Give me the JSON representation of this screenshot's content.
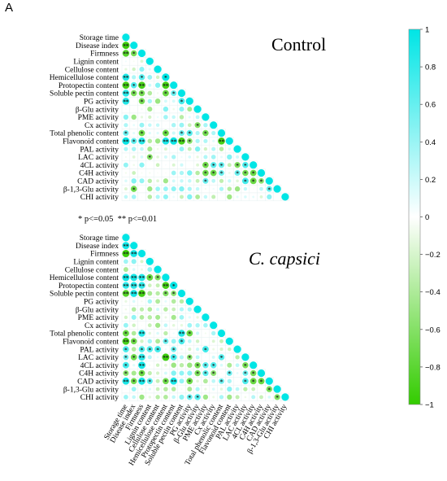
{
  "figure": {
    "panel_letter": "A",
    "significance_note": "* p<=0.05  ** p<=0.01",
    "star_one": "*",
    "star_two": "**"
  },
  "chart_data": [
    {
      "type": "heatmap",
      "title": "Control",
      "title_italic": false,
      "shape": "lower-triangle correlation, circle size and color by coefficient",
      "variables": [
        "Storage time",
        "Disease index",
        "Firmness",
        "Lignin content",
        "Cellulose content",
        "Hemicellulose content",
        "Protopectin content",
        "Soluble pectin content",
        "PG activity",
        "β-Glu activity",
        "PME activity",
        "Cx activity",
        "Total phenolic content",
        "Flavonoid content",
        "PAL activity",
        "LAC activity",
        "4CL activity",
        "C4H activity",
        "CAD activity",
        "β-1,3-Glu activity",
        "CHI activity"
      ],
      "significant_cells": [
        [
          1,
          0,
          "**"
        ],
        [
          2,
          0,
          "**"
        ],
        [
          2,
          1,
          "*"
        ],
        [
          5,
          0,
          "**"
        ],
        [
          5,
          2,
          "*"
        ],
        [
          5,
          5,
          "*"
        ],
        [
          6,
          0,
          "**"
        ],
        [
          6,
          1,
          "*"
        ],
        [
          6,
          2,
          "**"
        ],
        [
          6,
          5,
          "**"
        ],
        [
          7,
          0,
          "**"
        ],
        [
          7,
          1,
          "*"
        ],
        [
          7,
          2,
          "*"
        ],
        [
          7,
          5,
          "*"
        ],
        [
          7,
          6,
          "*"
        ],
        [
          8,
          0,
          "**"
        ],
        [
          8,
          2,
          "*"
        ],
        [
          8,
          7,
          "*"
        ],
        [
          11,
          9,
          "*"
        ],
        [
          12,
          0,
          "*"
        ],
        [
          12,
          2,
          "*"
        ],
        [
          12,
          5,
          "*"
        ],
        [
          12,
          7,
          "*"
        ],
        [
          12,
          8,
          "*"
        ],
        [
          12,
          10,
          "*"
        ],
        [
          13,
          0,
          "**"
        ],
        [
          13,
          1,
          "*"
        ],
        [
          13,
          2,
          "**"
        ],
        [
          13,
          5,
          "**"
        ],
        [
          13,
          6,
          "**"
        ],
        [
          13,
          7,
          "**"
        ],
        [
          13,
          8,
          "*"
        ],
        [
          13,
          12,
          "**"
        ],
        [
          15,
          3,
          "*"
        ],
        [
          16,
          10,
          "*"
        ],
        [
          16,
          11,
          "*"
        ],
        [
          16,
          12,
          "*"
        ],
        [
          16,
          14,
          "*"
        ],
        [
          16,
          15,
          "*"
        ],
        [
          17,
          10,
          "*"
        ],
        [
          17,
          11,
          "*"
        ],
        [
          17,
          12,
          "*"
        ],
        [
          17,
          14,
          "*"
        ],
        [
          17,
          15,
          "*"
        ],
        [
          17,
          16,
          "*"
        ],
        [
          18,
          10,
          "*"
        ],
        [
          18,
          15,
          "*"
        ],
        [
          18,
          16,
          "*"
        ],
        [
          18,
          17,
          "*"
        ],
        [
          19,
          1,
          "*"
        ],
        [
          19,
          18,
          "*"
        ]
      ],
      "color_scale": {
        "min": -1,
        "max": 1,
        "negative_color": "#33cc00",
        "zero_color": "#ffffff",
        "positive_color": "#00e5e5"
      }
    },
    {
      "type": "heatmap",
      "title": "C. capsici",
      "title_italic": true,
      "shape": "lower-triangle correlation, circle size and color by coefficient",
      "variables": [
        "Storage time",
        "Disease index",
        "Firmness",
        "Lignin content",
        "Cellulose content",
        "Hemicellulose content",
        "Protopectin content",
        "Soluble pectin content",
        "PG activity",
        "β-Glu activity",
        "PME activity",
        "Cx activity",
        "Total phenolic content",
        "Flavonoid content",
        "PAL activity",
        "LAC activity",
        "4CL activity",
        "C4H activity",
        "CAD activity",
        "β-1,3-Glu activity",
        "CHI activity"
      ],
      "significant_cells": [
        [
          1,
          0,
          "**"
        ],
        [
          2,
          0,
          "**"
        ],
        [
          2,
          1,
          "**"
        ],
        [
          5,
          0,
          "**"
        ],
        [
          5,
          1,
          "**"
        ],
        [
          5,
          2,
          "**"
        ],
        [
          5,
          3,
          "*"
        ],
        [
          5,
          4,
          "*"
        ],
        [
          6,
          0,
          "**"
        ],
        [
          6,
          1,
          "**"
        ],
        [
          6,
          2,
          "**"
        ],
        [
          6,
          5,
          "**"
        ],
        [
          6,
          6,
          "*"
        ],
        [
          7,
          0,
          "**"
        ],
        [
          7,
          1,
          "**"
        ],
        [
          7,
          2,
          "**"
        ],
        [
          7,
          5,
          "*"
        ],
        [
          7,
          6,
          "*"
        ],
        [
          12,
          0,
          "*"
        ],
        [
          12,
          2,
          "**"
        ],
        [
          12,
          7,
          "**"
        ],
        [
          12,
          8,
          "*"
        ],
        [
          13,
          0,
          "**"
        ],
        [
          13,
          1,
          "*"
        ],
        [
          13,
          5,
          "*"
        ],
        [
          13,
          7,
          "*"
        ],
        [
          14,
          0,
          "*"
        ],
        [
          14,
          2,
          "*"
        ],
        [
          14,
          3,
          "*"
        ],
        [
          14,
          4,
          "*"
        ],
        [
          14,
          6,
          "*"
        ],
        [
          14,
          10,
          "*"
        ],
        [
          15,
          0,
          "*"
        ],
        [
          15,
          1,
          "*"
        ],
        [
          15,
          2,
          "**"
        ],
        [
          15,
          5,
          "**"
        ],
        [
          15,
          6,
          "*"
        ],
        [
          15,
          8,
          "*"
        ],
        [
          15,
          12,
          "*"
        ],
        [
          16,
          0,
          "*"
        ],
        [
          16,
          2,
          "**"
        ],
        [
          16,
          9,
          "*"
        ],
        [
          16,
          10,
          "*"
        ],
        [
          16,
          11,
          "*"
        ],
        [
          16,
          15,
          "*"
        ],
        [
          17,
          0,
          "*"
        ],
        [
          17,
          2,
          "*"
        ],
        [
          17,
          9,
          "*"
        ],
        [
          17,
          10,
          "*"
        ],
        [
          17,
          11,
          "*"
        ],
        [
          17,
          13,
          "*"
        ],
        [
          17,
          15,
          "*"
        ],
        [
          17,
          16,
          "*"
        ],
        [
          18,
          0,
          "**"
        ],
        [
          18,
          1,
          "*"
        ],
        [
          18,
          2,
          "**"
        ],
        [
          18,
          3,
          "*"
        ],
        [
          18,
          5,
          "*"
        ],
        [
          18,
          6,
          "**"
        ],
        [
          18,
          8,
          "*"
        ],
        [
          18,
          12,
          "*"
        ],
        [
          18,
          15,
          "*"
        ],
        [
          18,
          16,
          "*"
        ],
        [
          18,
          17,
          "*"
        ],
        [
          19,
          18,
          "*"
        ],
        [
          20,
          8,
          "*"
        ],
        [
          20,
          9,
          "*"
        ],
        [
          20,
          19,
          "*"
        ]
      ],
      "color_scale": {
        "min": -1,
        "max": 1,
        "negative_color": "#33cc00",
        "zero_color": "#ffffff",
        "positive_color": "#00e5e5"
      }
    }
  ],
  "colorbar": {
    "ticks": [
      "1",
      "0.8",
      "0.6",
      "0.4",
      "0.2",
      "0",
      "−0.2",
      "−0.4",
      "−0.6",
      "−0.8",
      "−1"
    ],
    "tick_values": [
      1,
      0.8,
      0.6,
      0.4,
      0.2,
      0,
      -0.2,
      -0.4,
      -0.6,
      -0.8,
      -1
    ]
  }
}
